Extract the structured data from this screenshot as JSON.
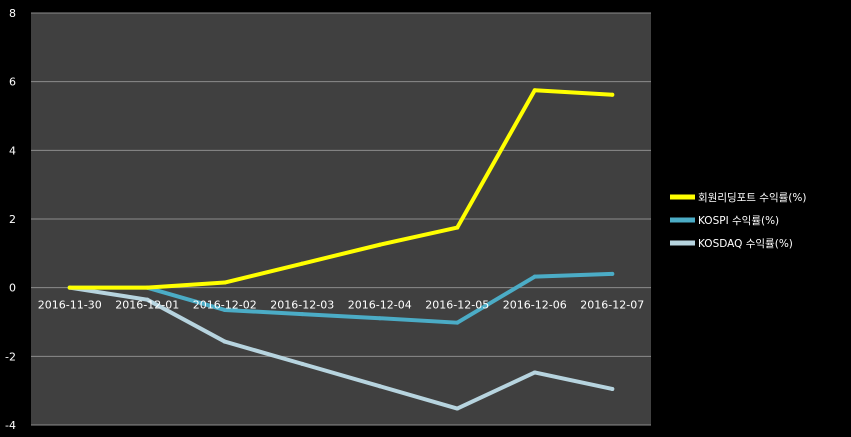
{
  "chart_data": {
    "type": "line",
    "title": "",
    "xlabel": "",
    "ylabel": "",
    "categories": [
      "2016-11-30",
      "2016-12-01",
      "2016-12-02",
      "2016-12-03",
      "2016-12-04",
      "2016-12-05",
      "2016-12-06",
      "2016-12-07"
    ],
    "ylim": [
      -4,
      8
    ],
    "yticks": [
      "8",
      "6",
      "4",
      "2",
      "0",
      "-2",
      "-4"
    ],
    "grid": true,
    "legend_position": "right",
    "series": [
      {
        "name": "회원리딩포트 수익률(%)",
        "color": "#ffff00",
        "values": [
          0,
          0,
          0.15,
          0.7,
          1.25,
          1.75,
          5.75,
          5.62
        ],
        "display": [
          0,
          0,
          0.15,
          null,
          null,
          1.75,
          5.75,
          5.62
        ]
      },
      {
        "name": "KOSPI 수익률(%)",
        "color": "#4bacc6",
        "values": [
          0,
          0,
          -0.65,
          -0.77,
          -0.89,
          -1.02,
          0.32,
          0.4
        ],
        "display": [
          0,
          0,
          -0.65,
          null,
          null,
          -1.02,
          0.32,
          0.4
        ]
      },
      {
        "name": "KOSDAQ 수익률(%)",
        "color": "#b7d4df",
        "values": [
          0,
          -0.35,
          -1.57,
          -2.22,
          -2.87,
          -3.52,
          -2.47,
          -2.95
        ],
        "display": [
          0,
          -0.35,
          -1.57,
          null,
          null,
          -3.52,
          -2.47,
          -2.95
        ]
      }
    ]
  }
}
